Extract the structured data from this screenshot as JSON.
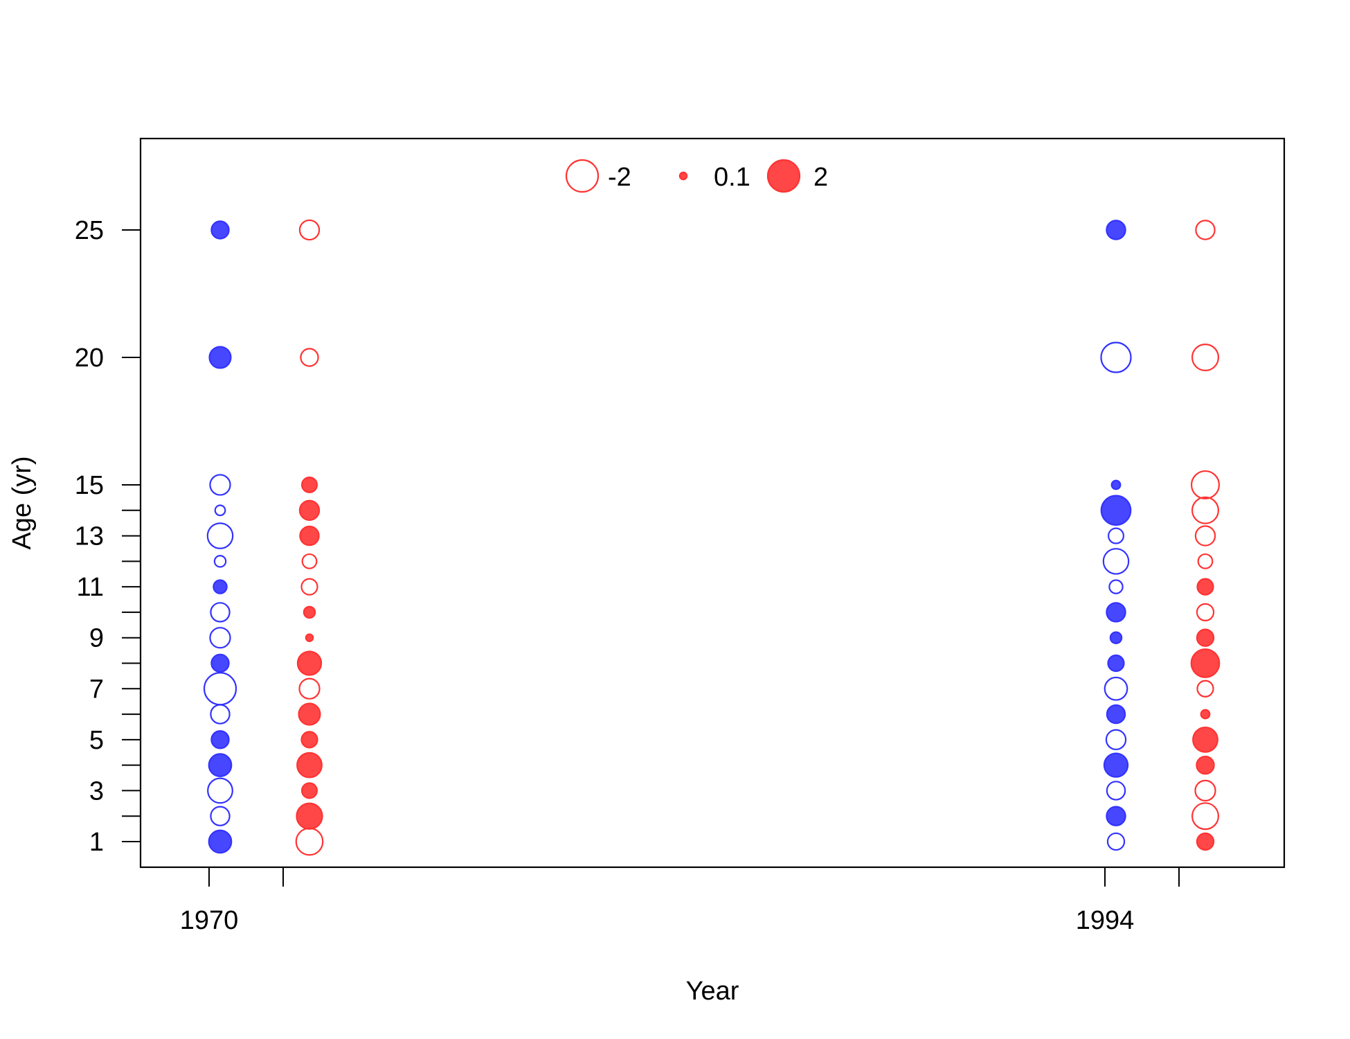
{
  "chart_data": {
    "type": "scatter",
    "variant": "bubble",
    "xlabel": "Year",
    "ylabel": "Age (yr)",
    "x_ticks": [
      1970,
      1971,
      1994,
      1995
    ],
    "x_tick_labels": [
      "1970",
      "",
      "1994",
      ""
    ],
    "y_ticks": [
      1,
      2,
      3,
      4,
      5,
      6,
      7,
      8,
      9,
      10,
      11,
      12,
      13,
      14,
      15,
      20,
      25
    ],
    "y_tick_labels": [
      "1",
      "",
      "3",
      "",
      "5",
      "",
      "7",
      "",
      "9",
      "",
      "11",
      "",
      "13",
      "",
      "15",
      "20",
      "25"
    ],
    "grid": false,
    "legend": {
      "placement": "top-center",
      "entries": [
        {
          "label": "-2",
          "value": -2
        },
        {
          "label": "0.1",
          "value": 0.1
        },
        {
          "label": "2",
          "value": 2
        }
      ]
    },
    "colors": {
      "blue": "#3333ff",
      "red": "#ff3333"
    },
    "series": [
      {
        "color": "blue",
        "x": 1970,
        "points": [
          {
            "age": 1,
            "value": 1.0
          },
          {
            "age": 2,
            "value": -0.7
          },
          {
            "age": 3,
            "value": -1.2
          },
          {
            "age": 4,
            "value": 1.0
          },
          {
            "age": 5,
            "value": 0.6
          },
          {
            "age": 6,
            "value": -0.7
          },
          {
            "age": 7,
            "value": -2.0
          },
          {
            "age": 8,
            "value": 0.6
          },
          {
            "age": 9,
            "value": -0.8
          },
          {
            "age": 10,
            "value": -0.7
          },
          {
            "age": 11,
            "value": 0.35
          },
          {
            "age": 12,
            "value": -0.25
          },
          {
            "age": 13,
            "value": -1.25
          },
          {
            "age": 14,
            "value": -0.2
          },
          {
            "age": 15,
            "value": -0.8
          },
          {
            "age": 20,
            "value": 0.9
          },
          {
            "age": 25,
            "value": 0.6
          }
        ]
      },
      {
        "color": "red",
        "x": 1971,
        "points": [
          {
            "age": 1,
            "value": -1.4
          },
          {
            "age": 2,
            "value": 1.3
          },
          {
            "age": 3,
            "value": 0.45
          },
          {
            "age": 4,
            "value": 1.2
          },
          {
            "age": 5,
            "value": 0.5
          },
          {
            "age": 6,
            "value": 0.9
          },
          {
            "age": 7,
            "value": -0.8
          },
          {
            "age": 8,
            "value": 1.1
          },
          {
            "age": 9,
            "value": 0.1
          },
          {
            "age": 10,
            "value": 0.25
          },
          {
            "age": 11,
            "value": -0.5
          },
          {
            "age": 12,
            "value": -0.4
          },
          {
            "age": 13,
            "value": 0.7
          },
          {
            "age": 14,
            "value": 0.75
          },
          {
            "age": 15,
            "value": 0.45
          },
          {
            "age": 20,
            "value": -0.6
          },
          {
            "age": 25,
            "value": -0.75
          }
        ]
      },
      {
        "color": "blue",
        "x": 1994,
        "points": [
          {
            "age": 1,
            "value": -0.55
          },
          {
            "age": 2,
            "value": 0.7
          },
          {
            "age": 3,
            "value": -0.65
          },
          {
            "age": 4,
            "value": 1.1
          },
          {
            "age": 5,
            "value": -0.75
          },
          {
            "age": 6,
            "value": 0.65
          },
          {
            "age": 7,
            "value": -1.0
          },
          {
            "age": 8,
            "value": 0.5
          },
          {
            "age": 9,
            "value": 0.25
          },
          {
            "age": 10,
            "value": 0.7
          },
          {
            "age": 11,
            "value": -0.35
          },
          {
            "age": 12,
            "value": -1.25
          },
          {
            "age": 13,
            "value": -0.45
          },
          {
            "age": 14,
            "value": 1.7
          },
          {
            "age": 15,
            "value": 0.15
          },
          {
            "age": 20,
            "value": -1.75
          },
          {
            "age": 25,
            "value": 0.7
          }
        ]
      },
      {
        "color": "red",
        "x": 1995,
        "points": [
          {
            "age": 1,
            "value": 0.55
          },
          {
            "age": 2,
            "value": -1.35
          },
          {
            "age": 3,
            "value": -0.8
          },
          {
            "age": 4,
            "value": 0.6
          },
          {
            "age": 5,
            "value": 1.2
          },
          {
            "age": 6,
            "value": 0.15
          },
          {
            "age": 7,
            "value": -0.5
          },
          {
            "age": 8,
            "value": 1.55
          },
          {
            "age": 9,
            "value": 0.55
          },
          {
            "age": 10,
            "value": -0.55
          },
          {
            "age": 11,
            "value": 0.5
          },
          {
            "age": 12,
            "value": -0.4
          },
          {
            "age": 13,
            "value": -0.75
          },
          {
            "age": 14,
            "value": -1.35
          },
          {
            "age": 15,
            "value": -1.5
          },
          {
            "age": 20,
            "value": -1.35
          },
          {
            "age": 25,
            "value": -0.7
          }
        ]
      }
    ]
  }
}
